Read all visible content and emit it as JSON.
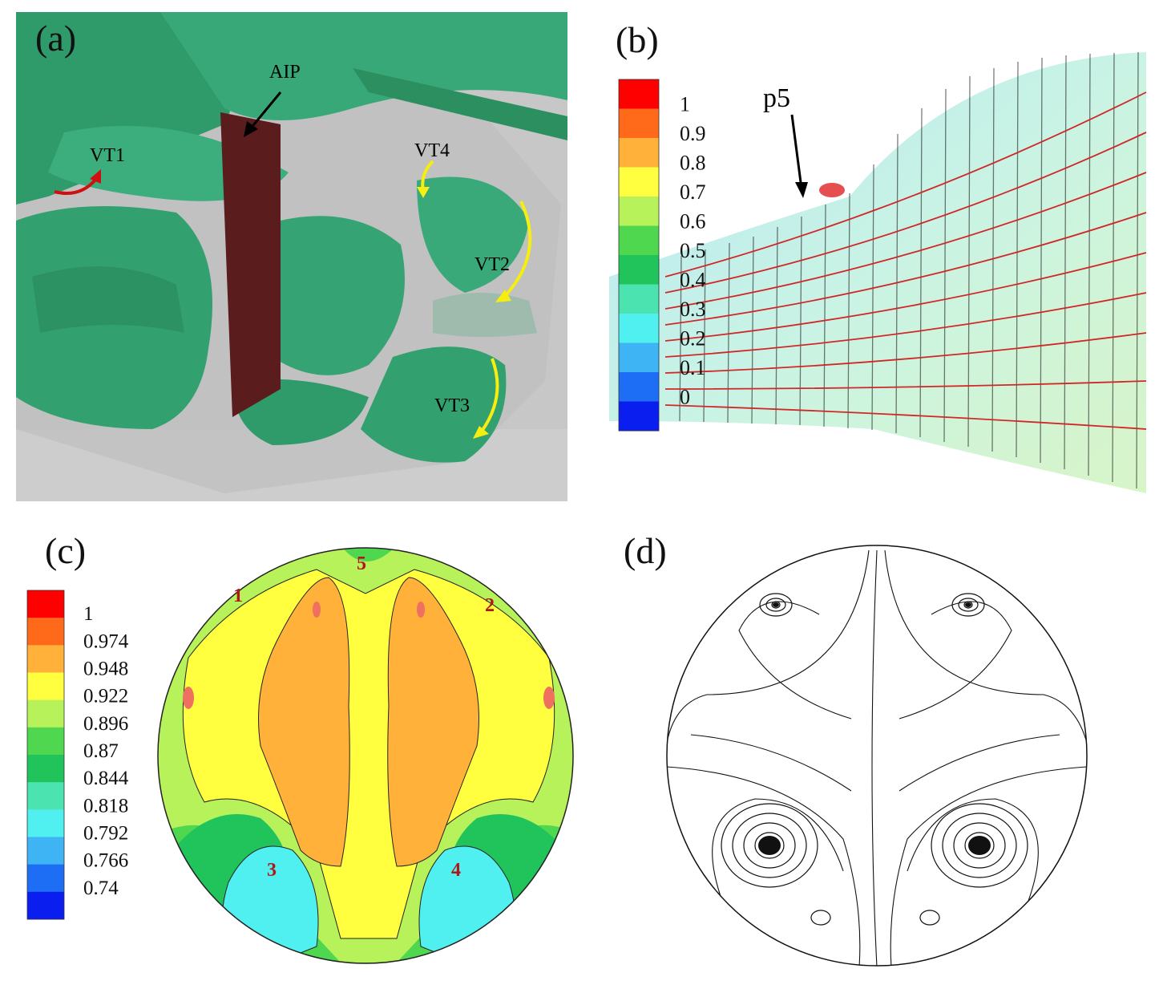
{
  "panels": {
    "a": {
      "label": "(a)",
      "annotations": [
        "AIP",
        "VT1",
        "VT2",
        "VT3",
        "VT4"
      ]
    },
    "b": {
      "label": "(b)",
      "annotation": "p5",
      "legend": {
        "ticks": [
          "1",
          "0.9",
          "0.8",
          "0.7",
          "0.6",
          "0.5",
          "0.4",
          "0.3",
          "0.2",
          "0.1",
          "0"
        ],
        "colors": [
          "#ff0000",
          "#ff6a1a",
          "#ffb13a",
          "#ffff40",
          "#b8f25a",
          "#4fd84f",
          "#21c45a",
          "#4be3b0",
          "#50f0f0",
          "#3fb4f5",
          "#1e6ef5",
          "#0a1ef0"
        ]
      }
    },
    "c": {
      "label": "(c)",
      "region_labels": [
        "1",
        "2",
        "3",
        "4",
        "5"
      ],
      "legend": {
        "ticks": [
          "1",
          "0.974",
          "0.948",
          "0.922",
          "0.896",
          "0.87",
          "0.844",
          "0.818",
          "0.792",
          "0.766",
          "0.74"
        ],
        "colors": [
          "#ff0000",
          "#ff6a1a",
          "#ffb13a",
          "#ffff40",
          "#b8f25a",
          "#4fd84f",
          "#21c45a",
          "#4be3b0",
          "#50f0f0",
          "#3fb4f5",
          "#1e6ef5",
          "#0a1ef0"
        ]
      }
    },
    "d": {
      "label": "(d)"
    }
  }
}
